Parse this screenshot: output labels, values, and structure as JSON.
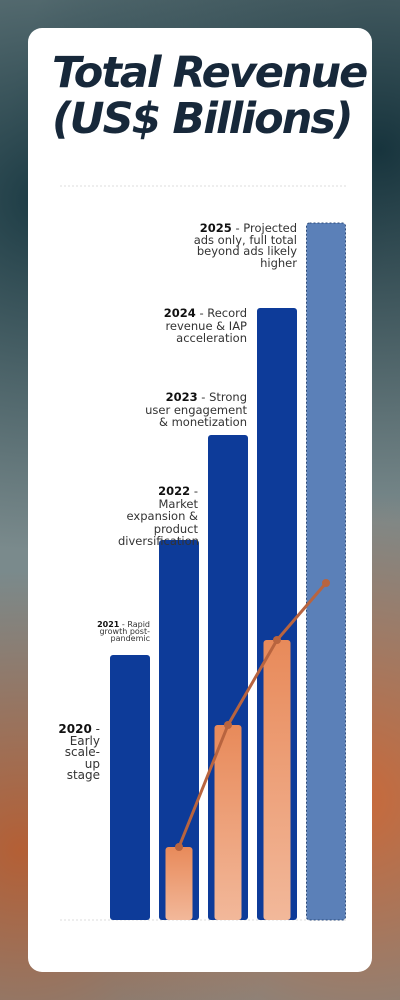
{
  "chart_data": {
    "type": "bar",
    "title": "Total Revenue (US$ Billions)",
    "categories": [
      "2020",
      "2021",
      "2022",
      "2023",
      "2024",
      "2025"
    ],
    "series": [
      {
        "color": "#0d3b99",
        "values": [
          null,
          13.25,
          19,
          24.25,
          30.6,
          34.85
        ]
      },
      {
        "color": "#e07a4a",
        "values": [
          null,
          null,
          3.65,
          9.75,
          14,
          null
        ]
      },
      {
        "type": "line",
        "color": "#b8643f",
        "values": [
          null,
          null,
          3.65,
          9.75,
          14,
          16.85
        ]
      }
    ],
    "projected_color": "#5b80b8",
    "annotations": [
      {
        "year": "2020",
        "text": "- Early scale-up stage"
      },
      {
        "year": "2021",
        "text": "- Rapid growth post-pandemic"
      },
      {
        "year": "2022",
        "text": "- Market expansion & product diversification"
      },
      {
        "year": "2023",
        "text": "- Strong user engagement & monetization"
      },
      {
        "year": "2024",
        "text": "- Record revenue & IAP acceleration"
      },
      {
        "year": "2025",
        "text": "- Projected ads only, full total beyond ads likely higher"
      }
    ]
  }
}
